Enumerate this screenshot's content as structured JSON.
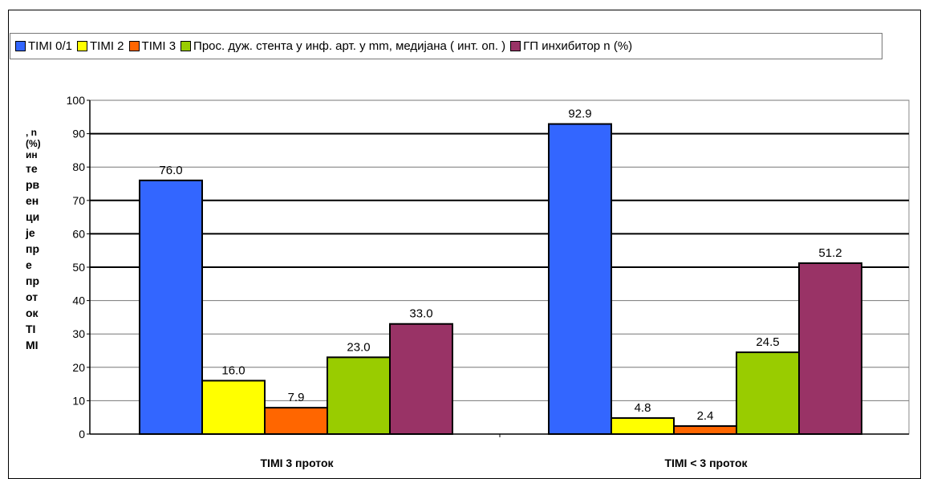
{
  "chart_data": {
    "type": "bar",
    "categories": [
      "TIMI 3 проток",
      "TIMI < 3 проток"
    ],
    "series": [
      {
        "name": "TIMI 0/1",
        "color": "#3366ff",
        "values": [
          76.0,
          92.9
        ]
      },
      {
        "name": "TIMI 2",
        "color": "#ffff00",
        "values": [
          16.0,
          4.8
        ]
      },
      {
        "name": "TIMI 3",
        "color": "#ff6600",
        "values": [
          7.9,
          2.4
        ]
      },
      {
        "name": "Прос. дуж. стента у инф. арт. у mm, медијана ( инт. оп. )",
        "color": "#99cc00",
        "values": [
          23.0,
          24.5
        ]
      },
      {
        "name": "ГП инхибитор n (%)",
        "color": "#993366",
        "values": [
          33.0,
          51.2
        ]
      }
    ],
    "ylim": [
      0,
      100
    ],
    "yticks": [
      0,
      10,
      20,
      30,
      40,
      50,
      60,
      70,
      80,
      90,
      100
    ],
    "ylabel_lines": [
      ", n",
      "(%)",
      "ин",
      "те",
      "рв",
      "ен",
      "ци",
      "је",
      "пр",
      "е",
      "пр",
      "от",
      "ок",
      "TI",
      "MI"
    ],
    "legend_position": "top",
    "grid": true
  }
}
